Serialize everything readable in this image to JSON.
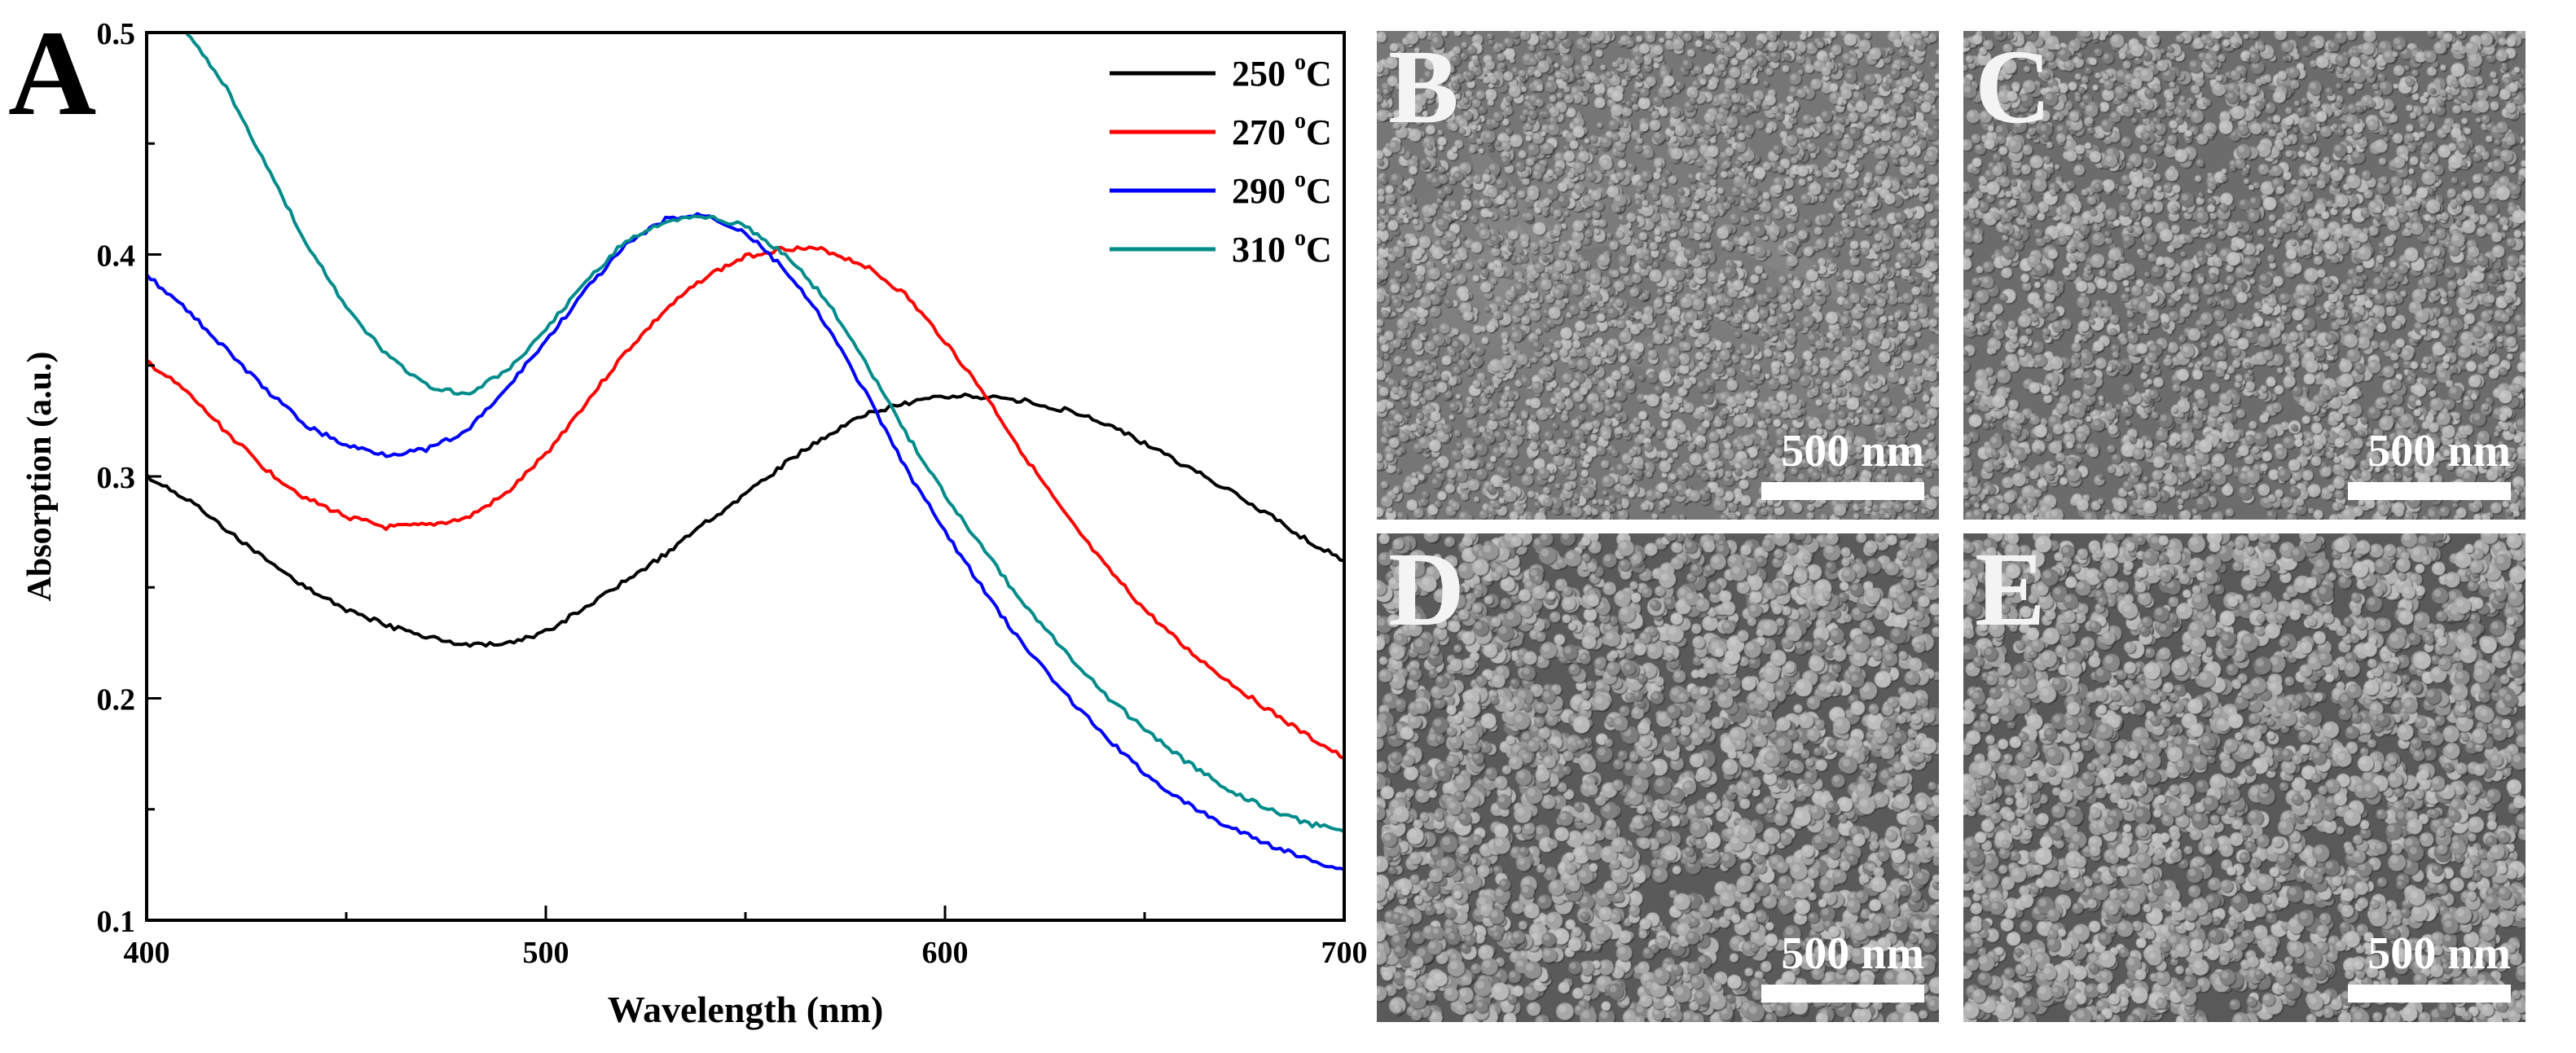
{
  "chart_data": {
    "type": "line",
    "panel_label": "A",
    "xlabel": "Wavelength (nm)",
    "ylabel": "Absorption (a.u.)",
    "xlim": [
      400,
      700
    ],
    "ylim": [
      0.1,
      0.5
    ],
    "x_ticks": [
      400,
      500,
      600,
      700
    ],
    "x_tick_labels": [
      "400",
      "500",
      "600",
      "700"
    ],
    "y_ticks": [
      0.1,
      0.2,
      0.3,
      0.4,
      0.5
    ],
    "y_tick_labels": [
      "0.1",
      "0.2",
      "0.3",
      "0.4",
      "0.5"
    ],
    "grid": false,
    "legend_position": "top-right",
    "unit_superscript": "o",
    "unit_letter": "C",
    "series": [
      {
        "name": "250 °C",
        "label_value": "250",
        "color": "#000000",
        "x": [
          400,
          410,
          420,
          430,
          440,
          450,
          460,
          470,
          480,
          490,
          500,
          510,
          520,
          530,
          540,
          550,
          560,
          570,
          580,
          590,
          600,
          610,
          620,
          630,
          640,
          650,
          660,
          670,
          680,
          690,
          700
        ],
        "y": [
          0.3,
          0.29,
          0.276,
          0.262,
          0.25,
          0.24,
          0.233,
          0.228,
          0.224,
          0.224,
          0.23,
          0.241,
          0.253,
          0.265,
          0.279,
          0.292,
          0.306,
          0.318,
          0.328,
          0.333,
          0.336,
          0.336,
          0.334,
          0.33,
          0.324,
          0.315,
          0.305,
          0.295,
          0.284,
          0.272,
          0.262
        ]
      },
      {
        "name": "270 °C",
        "label_value": "270",
        "color": "#ff0000",
        "x": [
          400,
          410,
          420,
          430,
          440,
          450,
          460,
          470,
          480,
          490,
          500,
          510,
          520,
          530,
          540,
          550,
          560,
          570,
          580,
          590,
          600,
          610,
          620,
          630,
          640,
          650,
          660,
          670,
          680,
          690,
          700
        ],
        "y": [
          0.352,
          0.338,
          0.32,
          0.303,
          0.29,
          0.282,
          0.277,
          0.278,
          0.281,
          0.292,
          0.31,
          0.333,
          0.356,
          0.375,
          0.39,
          0.399,
          0.403,
          0.402,
          0.395,
          0.382,
          0.361,
          0.337,
          0.309,
          0.283,
          0.26,
          0.24,
          0.223,
          0.209,
          0.196,
          0.184,
          0.173
        ]
      },
      {
        "name": "290 °C",
        "label_value": "290",
        "color": "#0000ff",
        "x": [
          400,
          410,
          420,
          430,
          440,
          450,
          460,
          470,
          480,
          490,
          500,
          510,
          520,
          530,
          540,
          550,
          560,
          570,
          580,
          590,
          600,
          610,
          620,
          630,
          640,
          650,
          660,
          670,
          680,
          690,
          700
        ],
        "y": [
          0.391,
          0.375,
          0.357,
          0.339,
          0.323,
          0.314,
          0.31,
          0.312,
          0.32,
          0.339,
          0.361,
          0.384,
          0.404,
          0.416,
          0.418,
          0.41,
          0.393,
          0.369,
          0.338,
          0.304,
          0.275,
          0.248,
          0.223,
          0.202,
          0.183,
          0.166,
          0.153,
          0.143,
          0.135,
          0.128,
          0.123
        ]
      },
      {
        "name": "310 °C",
        "label_value": "310",
        "color": "#008b8b",
        "x": [
          410,
          420,
          430,
          440,
          450,
          460,
          470,
          480,
          490,
          500,
          510,
          520,
          530,
          540,
          550,
          560,
          570,
          580,
          590,
          600,
          610,
          620,
          630,
          640,
          650,
          660,
          670,
          680,
          690,
          700
        ],
        "y": [
          0.5,
          0.475,
          0.44,
          0.405,
          0.376,
          0.355,
          0.341,
          0.337,
          0.347,
          0.366,
          0.388,
          0.406,
          0.415,
          0.417,
          0.413,
          0.4,
          0.38,
          0.352,
          0.32,
          0.292,
          0.266,
          0.242,
          0.221,
          0.202,
          0.186,
          0.172,
          0.16,
          0.151,
          0.144,
          0.14
        ]
      }
    ]
  },
  "sem_panels": [
    {
      "label": "B",
      "scale_text": "500 nm"
    },
    {
      "label": "C",
      "scale_text": "500 nm"
    },
    {
      "label": "D",
      "scale_text": "500 nm"
    },
    {
      "label": "E",
      "scale_text": "500 nm"
    }
  ]
}
